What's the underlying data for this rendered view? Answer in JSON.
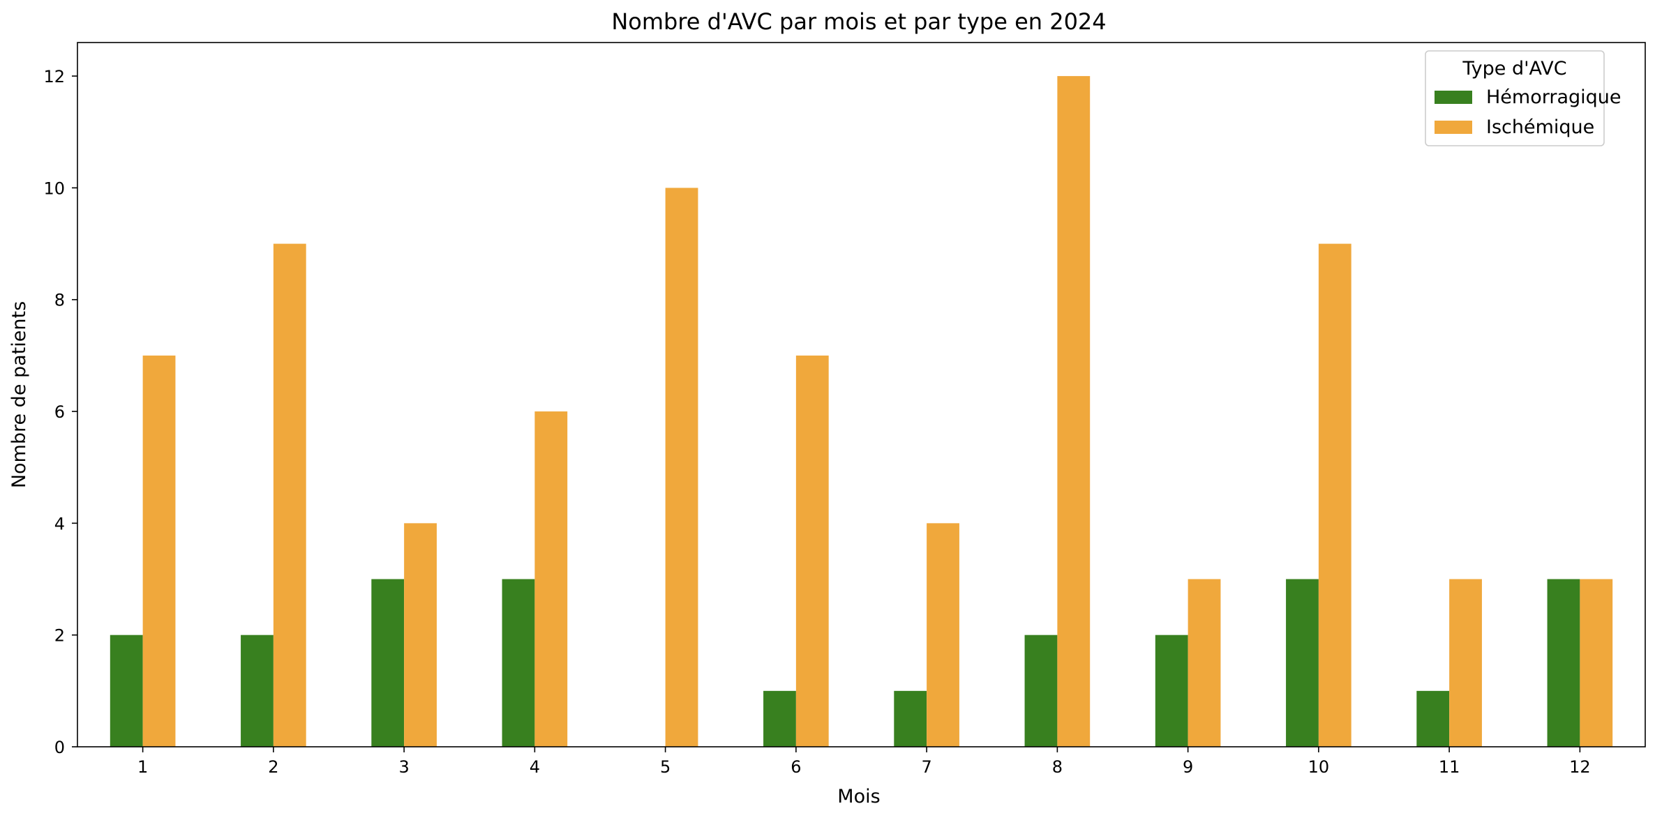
{
  "chart_data": {
    "type": "bar",
    "title": "Nombre d'AVC par mois et par type en 2024",
    "xlabel": "Mois",
    "ylabel": "Nombre de patients",
    "categories": [
      "1",
      "2",
      "3",
      "4",
      "5",
      "6",
      "7",
      "8",
      "9",
      "10",
      "11",
      "12"
    ],
    "series": [
      {
        "name": "Hémorragique",
        "color": "#38801f",
        "values": [
          2,
          2,
          3,
          3,
          0,
          1,
          1,
          2,
          2,
          3,
          1,
          3
        ]
      },
      {
        "name": "Ischémique",
        "color": "#f0a83c",
        "values": [
          7,
          9,
          4,
          6,
          10,
          7,
          4,
          12,
          3,
          9,
          3,
          3
        ]
      }
    ],
    "ylim": [
      0,
      12.6
    ],
    "yticks": [
      0,
      2,
      4,
      6,
      8,
      10,
      12
    ],
    "grid": false,
    "legend": {
      "title": "Type d'AVC",
      "placement": "top-right"
    }
  }
}
